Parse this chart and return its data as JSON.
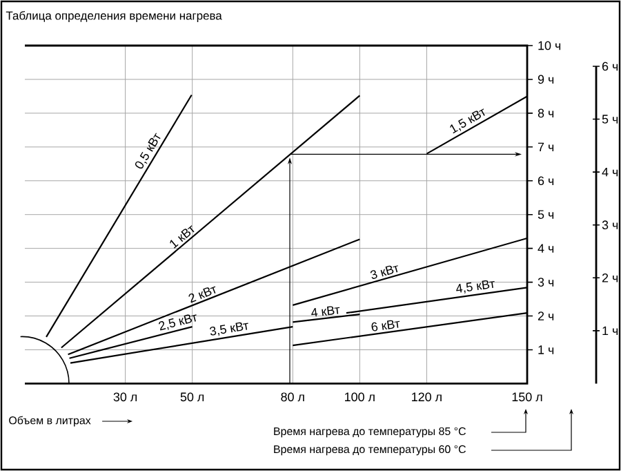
{
  "chart_data": {
    "type": "line",
    "title": "Таблица определения времени нагрева",
    "xlabel": "Объем в литрах",
    "annotations": [
      "Время нагрева до температуры 85 °C",
      "Время нагрева до температуры 60 °C"
    ],
    "xlim": [
      0,
      150
    ],
    "ylim": [
      0,
      10
    ],
    "y2lim": [
      0,
      6
    ],
    "xticks": [
      {
        "value": 30,
        "label": "30 л"
      },
      {
        "value": 50,
        "label": "50 л"
      },
      {
        "value": 80,
        "label": "80 л"
      },
      {
        "value": 100,
        "label": "100 л"
      },
      {
        "value": 120,
        "label": "120 л"
      },
      {
        "value": 150,
        "label": "150 л"
      }
    ],
    "yticks": [
      {
        "value": 1,
        "label": "1 ч"
      },
      {
        "value": 2,
        "label": "2 ч"
      },
      {
        "value": 3,
        "label": "3 ч"
      },
      {
        "value": 4,
        "label": "4 ч"
      },
      {
        "value": 5,
        "label": "5 ч"
      },
      {
        "value": 6,
        "label": "6 ч"
      },
      {
        "value": 7,
        "label": "7 ч"
      },
      {
        "value": 8,
        "label": "8 ч"
      },
      {
        "value": 9,
        "label": "9 ч"
      },
      {
        "value": 10,
        "label": "10 ч"
      }
    ],
    "y2ticks": [
      {
        "value": 1,
        "label": "1 ч"
      },
      {
        "value": 2,
        "label": "2 ч"
      },
      {
        "value": 3,
        "label": "3 ч"
      },
      {
        "value": 4,
        "label": "4 ч"
      },
      {
        "value": 5,
        "label": "5 ч"
      },
      {
        "value": 6,
        "label": "6 ч"
      }
    ],
    "grid": true,
    "line_style": "solid",
    "series": [
      {
        "name": "0,5 кВт",
        "color": "#000000",
        "x": [
          6.4,
          49.8
        ],
        "values": [
          1.38,
          8.54
        ]
      },
      {
        "name": "1 кВт",
        "color": "#000000",
        "x": [
          10.9,
          100
        ],
        "values": [
          1.06,
          8.52
        ]
      },
      {
        "name": "1,5 кВт",
        "color": "#000000",
        "x": [
          120,
          150
        ],
        "values": [
          6.8,
          8.5
        ]
      },
      {
        "name": "2 кВт",
        "color": "#000000",
        "x": [
          12.9,
          100
        ],
        "values": [
          0.86,
          4.27
        ]
      },
      {
        "name": "2,5 кВт",
        "color": "#000000",
        "x": [
          13.3,
          50
        ],
        "values": [
          0.75,
          1.68
        ]
      },
      {
        "name": "3 кВт",
        "color": "#000000",
        "x": [
          80,
          150
        ],
        "values": [
          2.32,
          4.3
        ]
      },
      {
        "name": "3,5 кВт",
        "color": "#000000",
        "x": [
          13.6,
          80
        ],
        "values": [
          0.61,
          1.68
        ]
      },
      {
        "name": "4 кВт",
        "color": "#000000",
        "x": [
          80,
          100
        ],
        "values": [
          1.82,
          2.05
        ]
      },
      {
        "name": "4,5 кВт",
        "color": "#000000",
        "x": [
          96,
          150
        ],
        "values": [
          2.09,
          2.84
        ]
      },
      {
        "name": "6 кВт",
        "color": "#000000",
        "x": [
          80,
          150
        ],
        "values": [
          1.13,
          2.09
        ]
      }
    ]
  }
}
